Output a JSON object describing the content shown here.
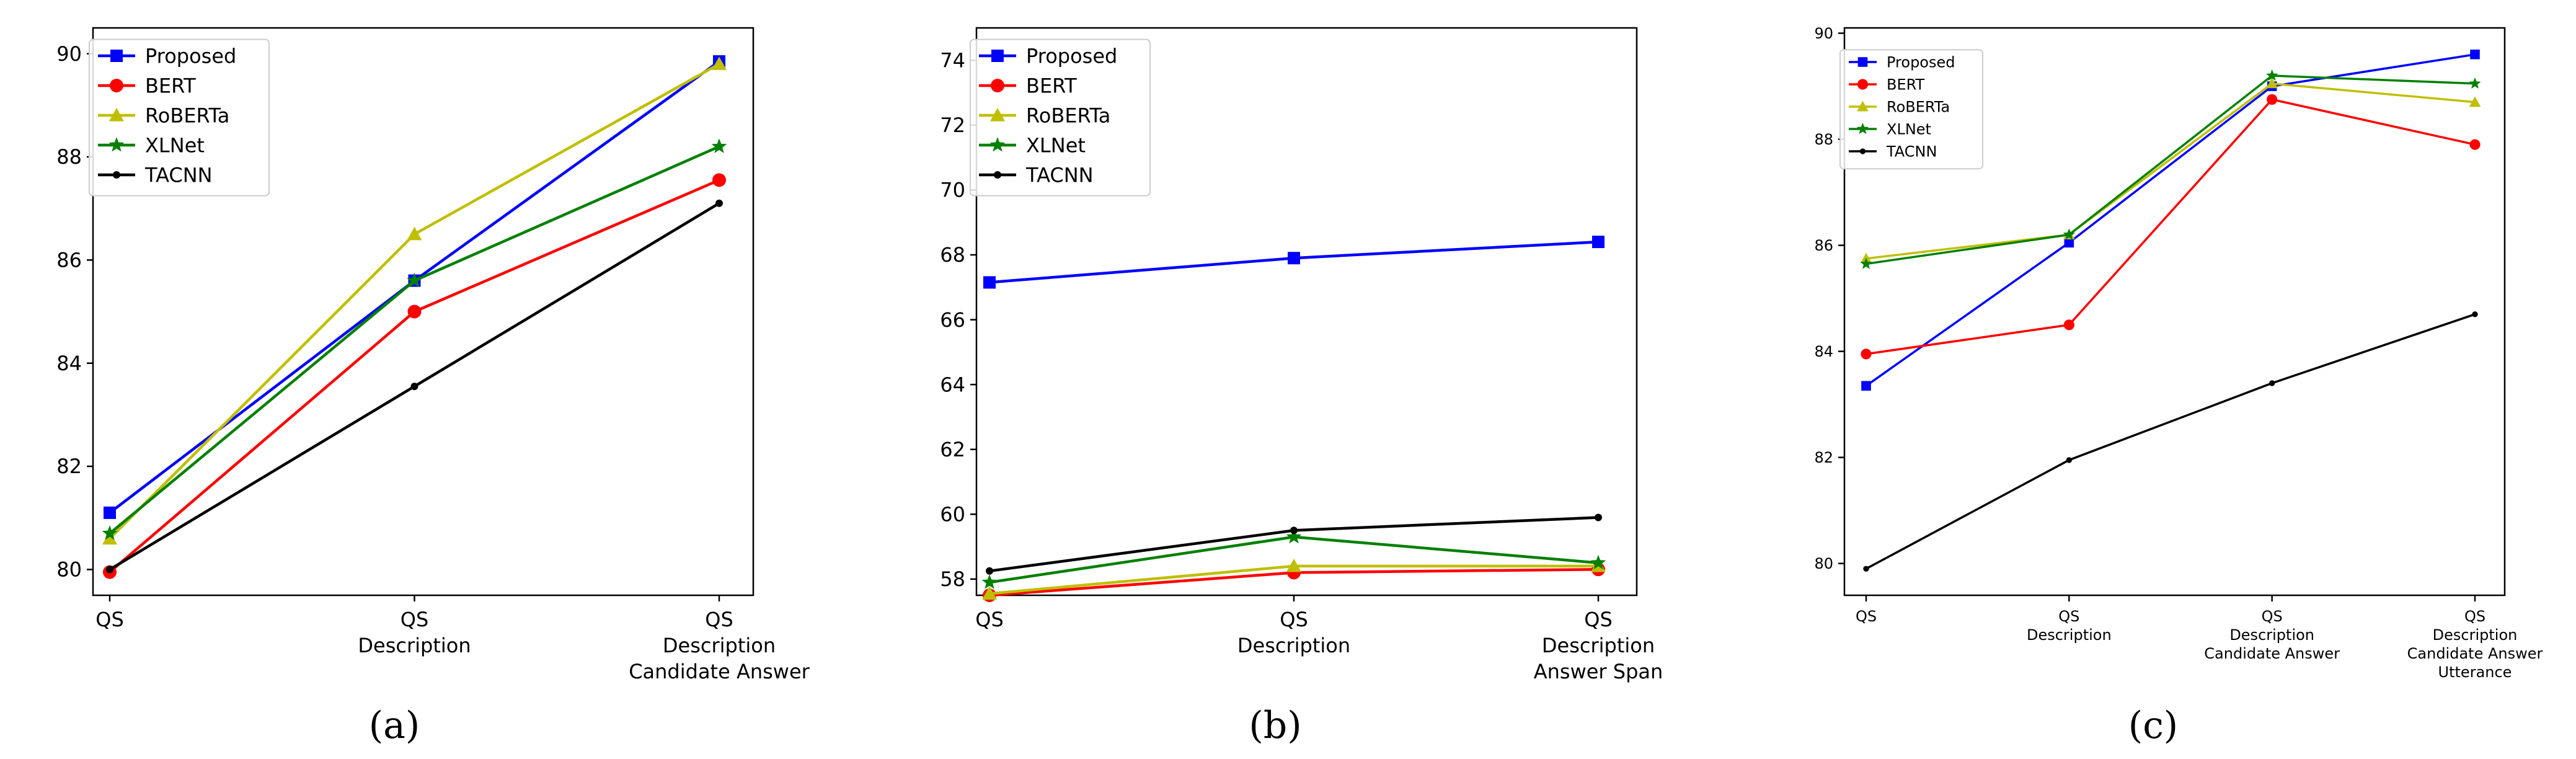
{
  "chart_data": [
    {
      "type": "line",
      "panel_label": "(a)",
      "title": "",
      "xlabel": "",
      "ylabel": "",
      "categories": [
        [
          "QS"
        ],
        [
          "QS",
          "Description"
        ],
        [
          "QS",
          "Description",
          "Candidate Answer"
        ]
      ],
      "ylim": [
        79.5,
        90.5
      ],
      "yticks": [
        80,
        82,
        84,
        86,
        88,
        90
      ],
      "grid": false,
      "legend_position": "top-left",
      "series": [
        {
          "name": "Proposed",
          "color": "#0000ff",
          "marker": "square",
          "values": [
            81.1,
            85.6,
            89.85
          ]
        },
        {
          "name": "BERT",
          "color": "#ff0000",
          "marker": "circle",
          "values": [
            79.95,
            85.0,
            87.55
          ]
        },
        {
          "name": "RoBERTa",
          "color": "#bfbf00",
          "marker": "triangle",
          "values": [
            80.6,
            86.5,
            89.8
          ]
        },
        {
          "name": "XLNet",
          "color": "#008000",
          "marker": "star",
          "values": [
            80.7,
            85.6,
            88.2
          ]
        },
        {
          "name": "TACNN",
          "color": "#000000",
          "marker": "dot",
          "values": [
            80.0,
            83.55,
            87.1
          ]
        }
      ]
    },
    {
      "type": "line",
      "panel_label": "(b)",
      "title": "",
      "xlabel": "",
      "ylabel": "",
      "categories": [
        [
          "QS"
        ],
        [
          "QS",
          "Description"
        ],
        [
          "QS",
          "Description",
          "Answer Span"
        ]
      ],
      "ylim": [
        57.5,
        75.0
      ],
      "yticks": [
        58,
        60,
        62,
        64,
        66,
        68,
        70,
        72,
        74
      ],
      "grid": false,
      "legend_position": "top-left",
      "series": [
        {
          "name": "Proposed",
          "color": "#0000ff",
          "marker": "square",
          "values": [
            67.15,
            67.9,
            68.4
          ]
        },
        {
          "name": "BERT",
          "color": "#ff0000",
          "marker": "circle",
          "values": [
            57.5,
            58.2,
            58.3
          ]
        },
        {
          "name": "RoBERTa",
          "color": "#bfbf00",
          "marker": "triangle",
          "values": [
            57.55,
            58.4,
            58.4
          ]
        },
        {
          "name": "XLNet",
          "color": "#008000",
          "marker": "star",
          "values": [
            57.9,
            59.3,
            58.5
          ]
        },
        {
          "name": "TACNN",
          "color": "#000000",
          "marker": "dot",
          "values": [
            58.25,
            59.5,
            59.9
          ]
        }
      ]
    },
    {
      "type": "line",
      "panel_label": "(c)",
      "title": "",
      "xlabel": "",
      "ylabel": "",
      "categories": [
        [
          "QS"
        ],
        [
          "QS",
          "Description"
        ],
        [
          "QS",
          "Description",
          "Candidate Answer"
        ],
        [
          "QS",
          "Description",
          "Candidate Answer",
          "Utterance"
        ]
      ],
      "ylim": [
        79.4,
        90.1
      ],
      "yticks": [
        80,
        82,
        84,
        86,
        88,
        90
      ],
      "grid": false,
      "legend_position": "top-left",
      "series": [
        {
          "name": "Proposed",
          "color": "#0000ff",
          "marker": "square",
          "values": [
            83.35,
            86.05,
            89.0,
            89.6
          ]
        },
        {
          "name": "BERT",
          "color": "#ff0000",
          "marker": "circle",
          "values": [
            83.95,
            84.5,
            88.75,
            87.9
          ]
        },
        {
          "name": "RoBERTa",
          "color": "#bfbf00",
          "marker": "triangle",
          "values": [
            85.75,
            86.2,
            89.05,
            88.7
          ]
        },
        {
          "name": "XLNet",
          "color": "#008000",
          "marker": "star",
          "values": [
            85.65,
            86.2,
            89.2,
            89.05
          ]
        },
        {
          "name": "TACNN",
          "color": "#000000",
          "marker": "dot",
          "values": [
            79.9,
            81.95,
            83.4,
            84.7
          ]
        }
      ]
    }
  ]
}
